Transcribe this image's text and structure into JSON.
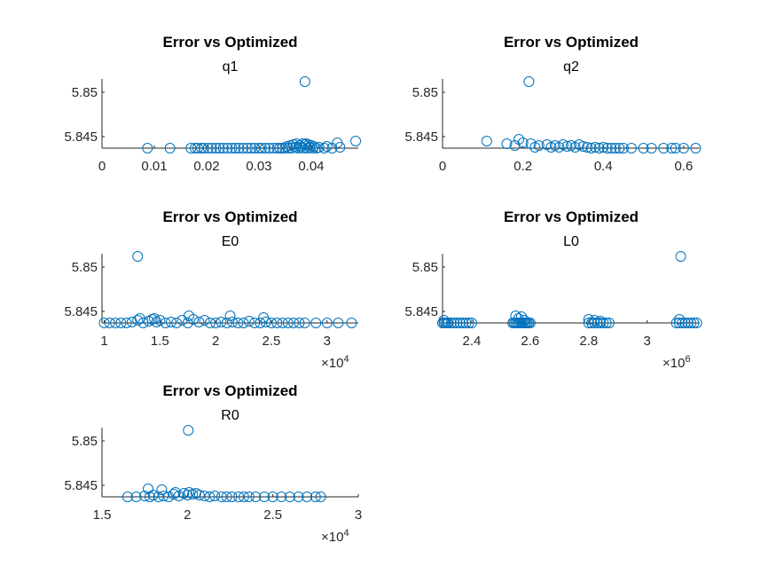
{
  "chart_data": [
    {
      "type": "scatter",
      "title": "Error vs Optimized",
      "subtitle": "q1",
      "xlim": [
        0,
        0.049
      ],
      "ylim": [
        5.8437,
        5.8515
      ],
      "xticks": [
        0,
        0.01,
        0.02,
        0.03,
        0.04
      ],
      "xtick_labels": [
        "0",
        "0.01",
        "0.02",
        "0.03",
        "0.04"
      ],
      "yticks": [
        5.845,
        5.85
      ],
      "ytick_labels": [
        "5.845",
        "5.85"
      ],
      "x_multiplier": "",
      "x": [
        0.0087,
        0.013,
        0.017,
        0.0178,
        0.0183,
        0.019,
        0.0195,
        0.0203,
        0.021,
        0.0218,
        0.0225,
        0.0232,
        0.024,
        0.0248,
        0.0255,
        0.0262,
        0.027,
        0.0278,
        0.0285,
        0.0292,
        0.03,
        0.0305,
        0.0312,
        0.032,
        0.0328,
        0.0335,
        0.034,
        0.0345,
        0.035,
        0.0353,
        0.0356,
        0.036,
        0.0363,
        0.0366,
        0.037,
        0.0372,
        0.0375,
        0.0378,
        0.038,
        0.0383,
        0.0385,
        0.0388,
        0.039,
        0.0393,
        0.0395,
        0.0397,
        0.04,
        0.0403,
        0.0405,
        0.041,
        0.0415,
        0.0425,
        0.043,
        0.044,
        0.045,
        0.0455,
        0.0485,
        0.0388
      ],
      "y": [
        5.8437,
        5.8437,
        5.8437,
        5.8437,
        5.8437,
        5.8437,
        5.8437,
        5.8437,
        5.8437,
        5.8437,
        5.8437,
        5.8437,
        5.8437,
        5.8437,
        5.8437,
        5.8437,
        5.8437,
        5.8437,
        5.8437,
        5.8437,
        5.8437,
        5.8437,
        5.8437,
        5.8437,
        5.8437,
        5.8437,
        5.8437,
        5.8437,
        5.8437,
        5.8439,
        5.8437,
        5.844,
        5.8437,
        5.8441,
        5.8438,
        5.8442,
        5.8437,
        5.844,
        5.8438,
        5.8442,
        5.8437,
        5.8441,
        5.8442,
        5.8437,
        5.8441,
        5.8438,
        5.844,
        5.8437,
        5.8439,
        5.8437,
        5.8438,
        5.8437,
        5.8439,
        5.8437,
        5.8443,
        5.8438,
        5.8445,
        5.8512
      ]
    },
    {
      "type": "scatter",
      "title": "Error vs Optimized",
      "subtitle": "q2",
      "xlim": [
        0,
        0.64
      ],
      "ylim": [
        5.8437,
        5.8515
      ],
      "xticks": [
        0,
        0.2,
        0.4,
        0.6
      ],
      "xtick_labels": [
        "0",
        "0.2",
        "0.4",
        "0.6"
      ],
      "yticks": [
        5.845,
        5.85
      ],
      "ytick_labels": [
        "5.845",
        "5.85"
      ],
      "x_multiplier": "",
      "x": [
        0.11,
        0.16,
        0.18,
        0.19,
        0.2,
        0.22,
        0.23,
        0.24,
        0.26,
        0.27,
        0.28,
        0.29,
        0.3,
        0.31,
        0.32,
        0.33,
        0.34,
        0.35,
        0.36,
        0.37,
        0.38,
        0.39,
        0.4,
        0.41,
        0.42,
        0.43,
        0.44,
        0.45,
        0.47,
        0.5,
        0.52,
        0.55,
        0.57,
        0.58,
        0.6,
        0.63,
        0.215
      ],
      "y": [
        5.8445,
        5.8442,
        5.844,
        5.8447,
        5.8443,
        5.8442,
        5.8438,
        5.844,
        5.8441,
        5.8438,
        5.844,
        5.8438,
        5.8441,
        5.8439,
        5.844,
        5.8438,
        5.8441,
        5.8439,
        5.8438,
        5.8437,
        5.8438,
        5.8437,
        5.8438,
        5.8437,
        5.8437,
        5.8437,
        5.8437,
        5.8437,
        5.8437,
        5.8437,
        5.8437,
        5.8437,
        5.8437,
        5.8437,
        5.8437,
        5.8437,
        5.8512
      ]
    },
    {
      "type": "scatter",
      "title": "Error vs Optimized",
      "subtitle": "E0",
      "xlim": [
        9800,
        32800
      ],
      "ylim": [
        5.8437,
        5.8515
      ],
      "xticks": [
        10000,
        15000,
        20000,
        25000,
        30000
      ],
      "xtick_labels": [
        "1",
        "1.5",
        "2",
        "2.5",
        "3"
      ],
      "yticks": [
        5.845,
        5.85
      ],
      "ytick_labels": [
        "5.845",
        "5.85"
      ],
      "x_multiplier": "10^4",
      "x": [
        10000,
        10500,
        11000,
        11500,
        12000,
        12500,
        13000,
        13500,
        14000,
        14300,
        14700,
        15000,
        15500,
        16000,
        16500,
        17000,
        17500,
        18000,
        18500,
        19000,
        19500,
        20000,
        20500,
        21000,
        21500,
        22000,
        22500,
        23000,
        23500,
        24000,
        24500,
        25000,
        25500,
        26000,
        26500,
        27000,
        27500,
        28000,
        29000,
        30000,
        31000,
        32200,
        17600,
        21300,
        13200,
        14500,
        24300,
        13000
      ],
      "y": [
        5.8437,
        5.8437,
        5.8437,
        5.8437,
        5.8437,
        5.8438,
        5.844,
        5.8437,
        5.8439,
        5.8441,
        5.8438,
        5.844,
        5.8437,
        5.8438,
        5.8437,
        5.844,
        5.8437,
        5.8441,
        5.8438,
        5.844,
        5.8437,
        5.8437,
        5.8438,
        5.8437,
        5.8438,
        5.8437,
        5.8437,
        5.8439,
        5.8437,
        5.8437,
        5.8438,
        5.8437,
        5.8437,
        5.8437,
        5.8437,
        5.8437,
        5.8437,
        5.8437,
        5.8437,
        5.8437,
        5.8437,
        5.8437,
        5.8445,
        5.8445,
        5.8442,
        5.8442,
        5.8443,
        5.8512
      ]
    },
    {
      "type": "scatter",
      "title": "Error vs Optimized",
      "subtitle": "L0",
      "xlim": [
        2300000,
        3180000
      ],
      "ylim": [
        5.8437,
        5.8515
      ],
      "xticks": [
        2400000,
        2600000,
        2800000,
        3000000
      ],
      "xtick_labels": [
        "2.4",
        "2.6",
        "2.8",
        "3"
      ],
      "yticks": [
        5.845,
        5.85
      ],
      "ytick_labels": [
        "5.845",
        "5.85"
      ],
      "x_multiplier": "10^6",
      "x": [
        2300000,
        2305000,
        2310000,
        2315000,
        2320000,
        2330000,
        2340000,
        2350000,
        2360000,
        2370000,
        2380000,
        2390000,
        2400000,
        2540000,
        2545000,
        2550000,
        2555000,
        2560000,
        2565000,
        2570000,
        2575000,
        2580000,
        2585000,
        2590000,
        2595000,
        2600000,
        2800000,
        2810000,
        2820000,
        2830000,
        2840000,
        2850000,
        2860000,
        2870000,
        3100000,
        3110000,
        3120000,
        3130000,
        3140000,
        3150000,
        3160000,
        3170000,
        2305000,
        2550000,
        2560000,
        2570000,
        2580000,
        2800000,
        2820000,
        2840000,
        3110000,
        3115000
      ],
      "y": [
        5.8437,
        5.8437,
        5.8437,
        5.8437,
        5.8437,
        5.8437,
        5.8437,
        5.8437,
        5.8437,
        5.8437,
        5.8437,
        5.8437,
        5.8437,
        5.8437,
        5.8437,
        5.8437,
        5.8437,
        5.8437,
        5.8437,
        5.8437,
        5.8437,
        5.8437,
        5.8437,
        5.8437,
        5.8437,
        5.8437,
        5.8437,
        5.8437,
        5.8437,
        5.8437,
        5.8437,
        5.8437,
        5.8437,
        5.8437,
        5.8437,
        5.8437,
        5.8437,
        5.8437,
        5.8437,
        5.8437,
        5.8437,
        5.8437,
        5.844,
        5.8445,
        5.8442,
        5.8444,
        5.844,
        5.8441,
        5.844,
        5.8439,
        5.8441,
        5.8512
      ]
    },
    {
      "type": "scatter",
      "title": "Error vs Optimized",
      "subtitle": "R0",
      "xlim": [
        15000,
        30000
      ],
      "ylim": [
        5.8437,
        5.8515
      ],
      "xticks": [
        15000,
        20000,
        25000,
        30000
      ],
      "xtick_labels": [
        "1.5",
        "2",
        "2.5",
        "3"
      ],
      "yticks": [
        5.845,
        5.85
      ],
      "ytick_labels": [
        "5.845",
        "5.85"
      ],
      "x_multiplier": "10^4",
      "x": [
        16500,
        17000,
        17500,
        17800,
        18000,
        18300,
        18600,
        18900,
        19200,
        19500,
        19800,
        20000,
        20100,
        20300,
        20500,
        20700,
        21000,
        21300,
        21600,
        22000,
        22300,
        22600,
        23000,
        23300,
        23600,
        24000,
        24500,
        25000,
        25500,
        26000,
        26500,
        27000,
        27500,
        27800,
        17700,
        18500,
        19300,
        20050
      ],
      "y": [
        5.8437,
        5.8437,
        5.8438,
        5.8437,
        5.8439,
        5.8437,
        5.8438,
        5.8437,
        5.844,
        5.8438,
        5.8441,
        5.8439,
        5.8442,
        5.844,
        5.8441,
        5.8439,
        5.8438,
        5.8437,
        5.8438,
        5.8437,
        5.8437,
        5.8437,
        5.8437,
        5.8437,
        5.8437,
        5.8437,
        5.8437,
        5.8437,
        5.8437,
        5.8437,
        5.8437,
        5.8437,
        5.8437,
        5.8437,
        5.8446,
        5.8445,
        5.8442,
        5.8512
      ]
    }
  ]
}
